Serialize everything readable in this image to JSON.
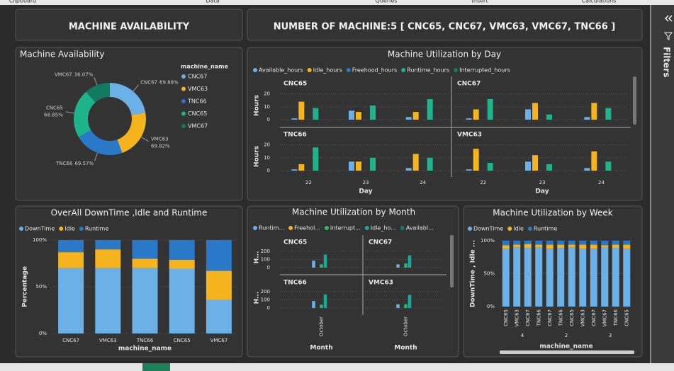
{
  "ribbon": {
    "groups": [
      "Clipboard",
      "Data",
      "Queries",
      "Insert",
      "Calculations"
    ]
  },
  "header": {
    "title": "MACHINE AVAILABILITY",
    "machines": "NUMBER OF MACHINE:5 [ CNC65, CNC67, VMC63, VMC67, TNC66 ]"
  },
  "filters": {
    "title": "Filters"
  },
  "chart_data": [
    {
      "type": "pie",
      "title": "Machine Availability",
      "legend_title": "machine_name",
      "categories": [
        "CNC67",
        "VMC63",
        "TNC66",
        "CNC65",
        "VMC67"
      ],
      "values": [
        69.88,
        69.82,
        69.57,
        68.85,
        36.07
      ],
      "value_labels": [
        "69.88%",
        "69.82%",
        "69.57%",
        "68.85%",
        "36.07%"
      ],
      "colors": [
        "#6cb0e8",
        "#f5b41e",
        "#2a78c8",
        "#1fb38c",
        "#137a62"
      ]
    },
    {
      "type": "small-multiples",
      "title": "Machine Utilization by Day",
      "x_label": "Day",
      "y_label": "Hours",
      "categories": [
        "22",
        "23",
        "24"
      ],
      "series": [
        {
          "name": "Available_hours",
          "color": "#6cb0e8"
        },
        {
          "name": "Idle_hours",
          "color": "#f5b41e"
        },
        {
          "name": "Freehood_hours",
          "color": "#2a78c8"
        },
        {
          "name": "Runtime_hours",
          "color": "#1fb38c"
        },
        {
          "name": "Interrupted_hours",
          "color": "#137a62"
        }
      ],
      "panels": [
        {
          "title": "CNC65",
          "values": [
            [
              1,
              7,
              2
            ],
            [
              14,
              6,
              6
            ],
            [
              0,
              0,
              0
            ],
            [
              9,
              11,
              16
            ],
            [
              0,
              0,
              0
            ]
          ]
        },
        {
          "title": "CNC67",
          "values": [
            [
              1,
              8,
              2
            ],
            [
              8,
              13,
              13
            ],
            [
              0,
              0,
              0
            ],
            [
              16,
              4,
              9
            ],
            [
              0,
              0,
              0
            ]
          ]
        },
        {
          "title": "TNC66",
          "values": [
            [
              1,
              7,
              2
            ],
            [
              5,
              7,
              13
            ],
            [
              0,
              0,
              0
            ],
            [
              18,
              10,
              10
            ],
            [
              0,
              0,
              0
            ]
          ]
        },
        {
          "title": "VMC63",
          "values": [
            [
              1,
              7,
              2
            ],
            [
              17,
              12,
              15
            ],
            [
              0,
              0,
              0
            ],
            [
              6,
              5,
              7
            ],
            [
              0,
              0,
              0
            ]
          ]
        }
      ],
      "ylim": [
        0,
        22
      ],
      "yticks": [
        0,
        10,
        20
      ],
      "grid": true
    },
    {
      "type": "stacked-bar",
      "title": "OverAll DownTime ,Idle and Runtime",
      "x_label": "machine_name",
      "y_label": "Percentage",
      "categories": [
        "CNC67",
        "VMC63",
        "TNC66",
        "CNC65",
        "VMC67"
      ],
      "series": [
        {
          "name": "DownTime",
          "color": "#6cb0e8",
          "values": [
            70,
            70,
            70,
            69,
            36
          ]
        },
        {
          "name": "Idle",
          "color": "#f5b41e",
          "values": [
            17,
            20,
            10,
            10,
            31
          ]
        },
        {
          "name": "Runtime",
          "color": "#2a78c8",
          "values": [
            13,
            10,
            20,
            21,
            33
          ]
        }
      ],
      "ylim": [
        0,
        100
      ],
      "yticks": [
        {
          "value": 0,
          "label": "0%"
        },
        {
          "value": 50,
          "label": "50%"
        },
        {
          "value": 100,
          "label": "100%"
        }
      ],
      "grid": true
    },
    {
      "type": "small-multiples",
      "title": "Machine Utilization by Month",
      "x_label": "Month",
      "y_label": "H...",
      "categories": [
        "October"
      ],
      "series": [
        {
          "name": "Runtim...",
          "color": "#6cb0e8"
        },
        {
          "name": "Freehol...",
          "color": "#f5b41e"
        },
        {
          "name": "Interrupt...",
          "color": "#2bb673"
        },
        {
          "name": "Idle_ho...",
          "color": "#17a99a"
        },
        {
          "name": "Availabl...",
          "color": "#137a62"
        }
      ],
      "panels": [
        {
          "title": "CNC65",
          "values": [
            [
              85
            ],
            [
              0
            ],
            [
              40
            ],
            [
              160
            ],
            [
              0
            ]
          ]
        },
        {
          "title": "CNC67",
          "values": [
            [
              40
            ],
            [
              0
            ],
            [
              50
            ],
            [
              150
            ],
            [
              0
            ]
          ]
        },
        {
          "title": "TNC66",
          "values": [
            [
              85
            ],
            [
              0
            ],
            [
              40
            ],
            [
              165
            ],
            [
              0
            ]
          ]
        },
        {
          "title": "VMC63",
          "values": [
            [
              45
            ],
            [
              0
            ],
            [
              45
            ],
            [
              160
            ],
            [
              0
            ]
          ]
        }
      ],
      "ylim": [
        0,
        250
      ],
      "yticks": [
        0,
        100,
        200
      ],
      "grid": true
    },
    {
      "type": "stacked-bar",
      "title": "Machine Utilization by Week",
      "x_label": "machine_name",
      "y_label": "DownTime , Idle ...",
      "categories": [
        "CNC65",
        "VMC63",
        "CNC67",
        "TNC66",
        "CNC67",
        "TNC66",
        "CNC65",
        "VMC63",
        "CNC67",
        "VMC67",
        "TNC66",
        "CNC65"
      ],
      "weeks": [
        null,
        "4",
        null,
        null,
        null,
        "2",
        null,
        null,
        null,
        "3",
        null,
        null
      ],
      "series": [
        {
          "name": "DownTime",
          "color": "#6cb0e8",
          "values": [
            88,
            90,
            89,
            90,
            88,
            89,
            90,
            88,
            88,
            90,
            89,
            88
          ]
        },
        {
          "name": "Idle",
          "color": "#f5b41e",
          "values": [
            5,
            4,
            6,
            4,
            6,
            5,
            4,
            6,
            6,
            3,
            5,
            6
          ]
        },
        {
          "name": "Runtime",
          "color": "#2a78c8",
          "values": [
            7,
            6,
            5,
            6,
            6,
            6,
            6,
            6,
            6,
            7,
            6,
            6
          ]
        }
      ],
      "ylim": [
        0,
        100
      ],
      "yticks": [
        {
          "value": 0,
          "label": "0%"
        },
        {
          "value": 50,
          "label": "50%"
        },
        {
          "value": 100,
          "label": "100%"
        }
      ],
      "grid": true
    }
  ]
}
